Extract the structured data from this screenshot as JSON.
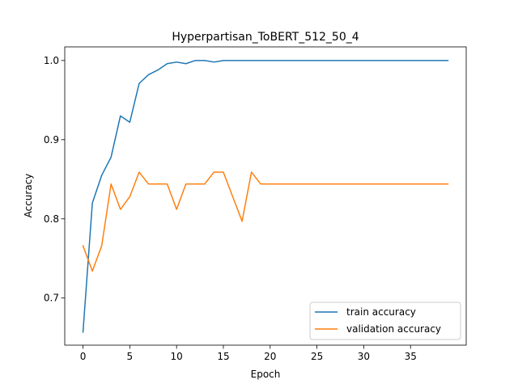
{
  "chart_data": {
    "type": "line",
    "title": "Hyperpartisan_ToBERT_512_50_4",
    "xlabel": "Epoch",
    "ylabel": "Accuracy",
    "xlim": [
      -1.95,
      40.95
    ],
    "ylim": [
      0.6405,
      1.0172
    ],
    "xticks": [
      0,
      5,
      10,
      15,
      20,
      25,
      30,
      35
    ],
    "yticks": [
      0.7,
      0.8,
      0.9,
      1.0
    ],
    "ytick_labels": [
      "0.7",
      "0.8",
      "0.9",
      "1.0"
    ],
    "grid": false,
    "legend_position": "lower right",
    "x": [
      0,
      1,
      2,
      3,
      4,
      5,
      6,
      7,
      8,
      9,
      10,
      11,
      12,
      13,
      14,
      15,
      16,
      17,
      18,
      19,
      20,
      21,
      22,
      23,
      24,
      25,
      26,
      27,
      28,
      29,
      30,
      31,
      32,
      33,
      34,
      35,
      36,
      37,
      38,
      39
    ],
    "series": [
      {
        "name": "train accuracy",
        "color": "#1f77b4",
        "values": [
          0.657,
          0.82,
          0.855,
          0.878,
          0.93,
          0.922,
          0.971,
          0.982,
          0.988,
          0.996,
          0.998,
          0.996,
          1.0,
          1.0,
          0.998,
          1.0,
          1.0,
          1.0,
          1.0,
          1.0,
          1.0,
          1.0,
          1.0,
          1.0,
          1.0,
          1.0,
          1.0,
          1.0,
          1.0,
          1.0,
          1.0,
          1.0,
          1.0,
          1.0,
          1.0,
          1.0,
          1.0,
          1.0,
          1.0,
          1.0
        ]
      },
      {
        "name": "validation accuracy",
        "color": "#ff7f0e",
        "values": [
          0.766,
          0.734,
          0.766,
          0.844,
          0.812,
          0.828,
          0.859,
          0.844,
          0.844,
          0.844,
          0.812,
          0.844,
          0.844,
          0.844,
          0.859,
          0.859,
          0.828,
          0.797,
          0.859,
          0.844,
          0.844,
          0.844,
          0.844,
          0.844,
          0.844,
          0.844,
          0.844,
          0.844,
          0.844,
          0.844,
          0.844,
          0.844,
          0.844,
          0.844,
          0.844,
          0.844,
          0.844,
          0.844,
          0.844,
          0.844
        ]
      }
    ]
  }
}
